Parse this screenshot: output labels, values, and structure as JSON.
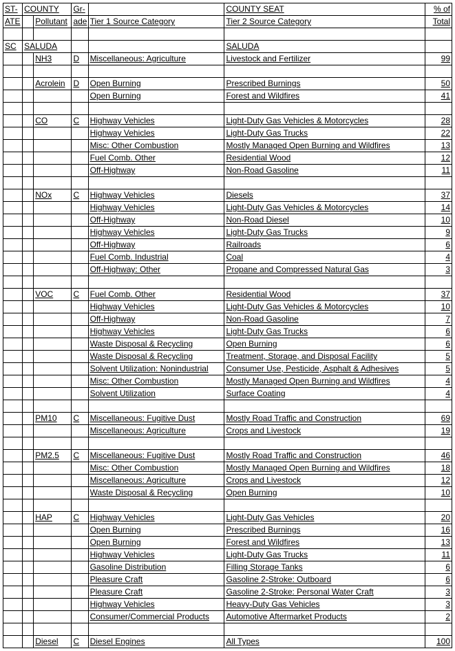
{
  "header": {
    "state_top": "ST-",
    "state_bot": "ATE",
    "county": "COUNTY",
    "grade_top": "Gr-",
    "grade_bot": "ade",
    "pollutant": "Pollutant",
    "tier1": "Tier 1 Source Category",
    "county_seat": "COUNTY SEAT",
    "tier2": "Tier 2 Source Category",
    "pct_top": "% of",
    "pct_bot": "Total"
  },
  "rows": [
    {
      "type": "blank"
    },
    {
      "type": "county",
      "state": "SC",
      "county": "SALUDA",
      "seat": "SALUDA"
    },
    {
      "type": "data",
      "pollutant": "NH3",
      "grade": "D",
      "t1": "Miscellaneous: Agriculture",
      "t2": "Livestock and Fertilizer",
      "pct": "99"
    },
    {
      "type": "blank"
    },
    {
      "type": "data",
      "pollutant": "Acrolein",
      "grade": "D",
      "t1": "Open Burning",
      "t2": "Prescribed Burnings",
      "pct": "50"
    },
    {
      "type": "data",
      "pollutant": "",
      "grade": "",
      "t1": "Open Burning",
      "t2": "Forest and Wildfires",
      "pct": "41"
    },
    {
      "type": "blank"
    },
    {
      "type": "data",
      "pollutant": "CO",
      "grade": "C",
      "t1": "Highway Vehicles",
      "t2": "Light-Duty Gas Vehicles & Motorcycles",
      "pct": "28"
    },
    {
      "type": "data",
      "pollutant": "",
      "grade": "",
      "t1": "Highway Vehicles",
      "t2": "Light-Duty Gas Trucks",
      "pct": "22"
    },
    {
      "type": "data",
      "pollutant": "",
      "grade": "",
      "t1": "Misc: Other Combustion",
      "t2": "Mostly Managed Open Burning and Wildfires",
      "pct": "13"
    },
    {
      "type": "data",
      "pollutant": "",
      "grade": "",
      "t1": "Fuel Comb. Other",
      "t2": "Residential Wood",
      "pct": "12"
    },
    {
      "type": "data",
      "pollutant": "",
      "grade": "",
      "t1": "Off-Highway",
      "t2": "Non-Road Gasoline",
      "pct": "11"
    },
    {
      "type": "blank"
    },
    {
      "type": "data",
      "pollutant": "NOx",
      "grade": "C",
      "t1": "Highway Vehicles",
      "t2": "Diesels",
      "pct": "37"
    },
    {
      "type": "data",
      "pollutant": "",
      "grade": "",
      "t1": "Highway Vehicles",
      "t2": "Light-Duty Gas Vehicles & Motorcycles",
      "pct": "14"
    },
    {
      "type": "data",
      "pollutant": "",
      "grade": "",
      "t1": "Off-Highway",
      "t2": "Non-Road Diesel",
      "pct": "10"
    },
    {
      "type": "data",
      "pollutant": "",
      "grade": "",
      "t1": "Highway Vehicles",
      "t2": "Light-Duty Gas Trucks",
      "pct": "9"
    },
    {
      "type": "data",
      "pollutant": "",
      "grade": "",
      "t1": "Off-Highway",
      "t2": "Railroads",
      "pct": "6"
    },
    {
      "type": "data",
      "pollutant": "",
      "grade": "",
      "t1": "Fuel Comb. Industrial",
      "t2": "Coal",
      "pct": "4"
    },
    {
      "type": "data",
      "pollutant": "",
      "grade": "",
      "t1": "Off-Highway: Other",
      "t2": "Propane and Compressed Natural Gas",
      "pct": "3"
    },
    {
      "type": "blank"
    },
    {
      "type": "data",
      "pollutant": "VOC",
      "grade": "C",
      "t1": "Fuel Comb. Other",
      "t2": "Residential Wood",
      "pct": "37"
    },
    {
      "type": "data",
      "pollutant": "",
      "grade": "",
      "t1": "Highway Vehicles",
      "t2": "Light-Duty Gas Vehicles & Motorcycles",
      "pct": "10"
    },
    {
      "type": "data",
      "pollutant": "",
      "grade": "",
      "t1": "Off-Highway",
      "t2": "Non-Road Gasoline",
      "pct": "7"
    },
    {
      "type": "data",
      "pollutant": "",
      "grade": "",
      "t1": "Highway Vehicles",
      "t2": "Light-Duty Gas Trucks",
      "pct": "6"
    },
    {
      "type": "data",
      "pollutant": "",
      "grade": "",
      "t1": "Waste Disposal & Recycling",
      "t2": "Open Burning",
      "pct": "6"
    },
    {
      "type": "data",
      "pollutant": "",
      "grade": "",
      "t1": "Waste Disposal & Recycling",
      "t2": "Treatment, Storage, and Disposal Facility",
      "pct": "5"
    },
    {
      "type": "data",
      "pollutant": "",
      "grade": "",
      "t1": "Solvent Utilization: Nonindustrial",
      "t2": "Consumer Use, Pesticide, Asphalt & Adhesives",
      "pct": "5"
    },
    {
      "type": "data",
      "pollutant": "",
      "grade": "",
      "t1": "Misc: Other Combustion",
      "t2": "Mostly Managed Open Burning and Wildfires",
      "pct": "4"
    },
    {
      "type": "data",
      "pollutant": "",
      "grade": "",
      "t1": "Solvent Utilization",
      "t2": "Surface Coating",
      "pct": "4"
    },
    {
      "type": "blank"
    },
    {
      "type": "data",
      "pollutant": "PM10",
      "grade": "C",
      "t1": "Miscellaneous: Fugitive Dust",
      "t2": "Mostly Road Traffic and Construction",
      "pct": "69"
    },
    {
      "type": "data",
      "pollutant": "",
      "grade": "",
      "t1": "Miscellaneous: Agriculture",
      "t2": "Crops and Livestock",
      "pct": "19"
    },
    {
      "type": "blank"
    },
    {
      "type": "data",
      "pollutant": "PM2.5",
      "grade": "C",
      "t1": "Miscellaneous: Fugitive Dust",
      "t2": "Mostly Road Traffic and Construction",
      "pct": "46"
    },
    {
      "type": "data",
      "pollutant": "",
      "grade": "",
      "t1": "Misc: Other Combustion",
      "t2": "Mostly Managed Open Burning and Wildfires",
      "pct": "18"
    },
    {
      "type": "data",
      "pollutant": "",
      "grade": "",
      "t1": "Miscellaneous: Agriculture",
      "t2": "Crops and Livestock",
      "pct": "12"
    },
    {
      "type": "data",
      "pollutant": "",
      "grade": "",
      "t1": "Waste Disposal & Recycling",
      "t2": "Open Burning",
      "pct": "10"
    },
    {
      "type": "blank"
    },
    {
      "type": "data",
      "pollutant": "HAP",
      "grade": "C",
      "t1": "Highway Vehicles",
      "t2": "Light-Duty Gas Vehicles",
      "pct": "20"
    },
    {
      "type": "data",
      "pollutant": "",
      "grade": "",
      "t1": "Open Burning",
      "t2": "Prescribed Burnings",
      "pct": "16"
    },
    {
      "type": "data",
      "pollutant": "",
      "grade": "",
      "t1": "Open Burning",
      "t2": "Forest and Wildfires",
      "pct": "13"
    },
    {
      "type": "data",
      "pollutant": "",
      "grade": "",
      "t1": "Highway Vehicles",
      "t2": "Light-Duty Gas Trucks",
      "pct": "11"
    },
    {
      "type": "data",
      "pollutant": "",
      "grade": "",
      "t1": "Gasoline Distribution",
      "t2": "Filling Storage Tanks",
      "pct": "6"
    },
    {
      "type": "data",
      "pollutant": "",
      "grade": "",
      "t1": "Pleasure Craft",
      "t2": "Gasoline 2-Stroke: Outboard",
      "pct": "6"
    },
    {
      "type": "data",
      "pollutant": "",
      "grade": "",
      "t1": "Pleasure Craft",
      "t2": "Gasoline 2-Stroke: Personal Water Craft",
      "pct": "3"
    },
    {
      "type": "data",
      "pollutant": "",
      "grade": "",
      "t1": "Highway Vehicles",
      "t2": "Heavy-Duty Gas Vehicles",
      "pct": "3"
    },
    {
      "type": "data",
      "pollutant": "",
      "grade": "",
      "t1": "Consumer/Commercial Products",
      "t2": "Automotive Aftermarket Products",
      "pct": "2"
    },
    {
      "type": "blank"
    },
    {
      "type": "data",
      "pollutant": "Diesel",
      "grade": "C",
      "t1": "Diesel Engines",
      "t2": "All Types",
      "pct": "100"
    }
  ]
}
